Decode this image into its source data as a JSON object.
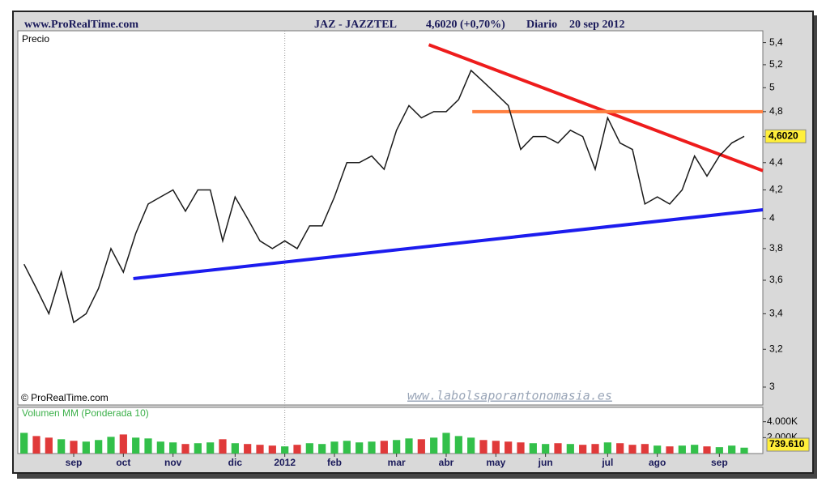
{
  "header": {
    "site": "www.ProRealTime.com",
    "ticker": "JAZ - JAZZTEL",
    "quote": "4,6020 (+0,70%)",
    "period": "Diario",
    "date": "20 sep 2012"
  },
  "copyright": "© ProRealTime.com",
  "watermark": "www.labolsaporantonomasia.es",
  "chart_data": [
    {
      "type": "line",
      "title": "Precio",
      "color": "#1a1a1a",
      "log_scale": true,
      "values": [
        3.7,
        3.55,
        3.4,
        3.65,
        3.35,
        3.4,
        3.55,
        3.8,
        3.65,
        3.9,
        4.1,
        4.15,
        4.2,
        4.05,
        4.2,
        4.2,
        3.85,
        4.15,
        4.0,
        3.85,
        3.8,
        3.85,
        3.8,
        3.95,
        3.95,
        4.15,
        4.4,
        4.4,
        4.45,
        4.35,
        4.65,
        4.85,
        4.75,
        4.8,
        4.8,
        4.9,
        5.15,
        5.05,
        4.95,
        4.85,
        4.5,
        4.6,
        4.6,
        4.55,
        4.65,
        4.6,
        4.35,
        4.75,
        4.55,
        4.5,
        4.1,
        4.15,
        4.1,
        4.2,
        4.45,
        4.3,
        4.45,
        4.55,
        4.602
      ],
      "last_label": "4,6020",
      "ylim": [
        2.91,
        5.51
      ],
      "yticks": [
        {
          "value": 5.4,
          "label": "5,4"
        },
        {
          "value": 5.2,
          "label": "5,2"
        },
        5,
        {
          "value": 4.8,
          "label": "4,8"
        },
        {
          "value": 4.6,
          "label": "4,6"
        },
        {
          "value": 4.4,
          "label": "4,4"
        },
        {
          "value": 4.2,
          "label": "4,2"
        },
        4,
        {
          "value": 3.8,
          "label": "3,8"
        },
        {
          "value": 3.6,
          "label": "3,6"
        },
        {
          "value": 3.4,
          "label": "3,4"
        },
        {
          "value": 3.2,
          "label": "3,2"
        },
        3
      ],
      "lines": [
        {
          "color": "#ee1c1c",
          "x": [
            32.6,
            59.5
          ],
          "values": [
            5.38,
            4.34
          ]
        },
        {
          "color": "#ff7f3f",
          "x": [
            36.1,
            59.5
          ],
          "values": [
            4.8,
            4.8
          ]
        },
        {
          "color": "#1c1cee",
          "x": [
            8.8,
            59.5
          ],
          "values": [
            3.61,
            4.06
          ]
        }
      ]
    },
    {
      "type": "bar",
      "title": "Volumen MM (Ponderada 10)",
      "up_color": "#33c04a",
      "down_color": "#e03a3a",
      "categories": [
        null,
        null,
        null,
        null,
        "sep",
        null,
        null,
        null,
        "oct",
        null,
        null,
        null,
        "nov",
        null,
        null,
        null,
        null,
        "dic",
        null,
        null,
        null,
        "2012",
        null,
        null,
        null,
        "feb",
        null,
        null,
        null,
        null,
        "mar",
        null,
        null,
        null,
        "abr",
        null,
        null,
        null,
        "may",
        null,
        null,
        null,
        "jun",
        null,
        null,
        null,
        null,
        "jul",
        null,
        null,
        null,
        "ago",
        null,
        null,
        null,
        null,
        "sep",
        null,
        null
      ],
      "values": [
        2600,
        2200,
        2000,
        1800,
        1600,
        1500,
        1700,
        2100,
        2400,
        2000,
        1900,
        1500,
        1400,
        1200,
        1300,
        1400,
        1800,
        1300,
        1200,
        1100,
        1000,
        900,
        1100,
        1300,
        1200,
        1500,
        1600,
        1400,
        1500,
        1600,
        1700,
        1900,
        1800,
        2000,
        2600,
        2200,
        2000,
        1700,
        1600,
        1500,
        1400,
        1300,
        1200,
        1300,
        1200,
        1100,
        1200,
        1400,
        1300,
        1100,
        1200,
        1000,
        900,
        1000,
        1100,
        900,
        800,
        1000,
        739.61
      ],
      "last_label": "739.610",
      "ylim": [
        0,
        5800
      ],
      "yticks": [
        {
          "value": 4000,
          "label": "4.000K"
        },
        {
          "value": 2000,
          "label": "2.000K"
        }
      ]
    }
  ]
}
